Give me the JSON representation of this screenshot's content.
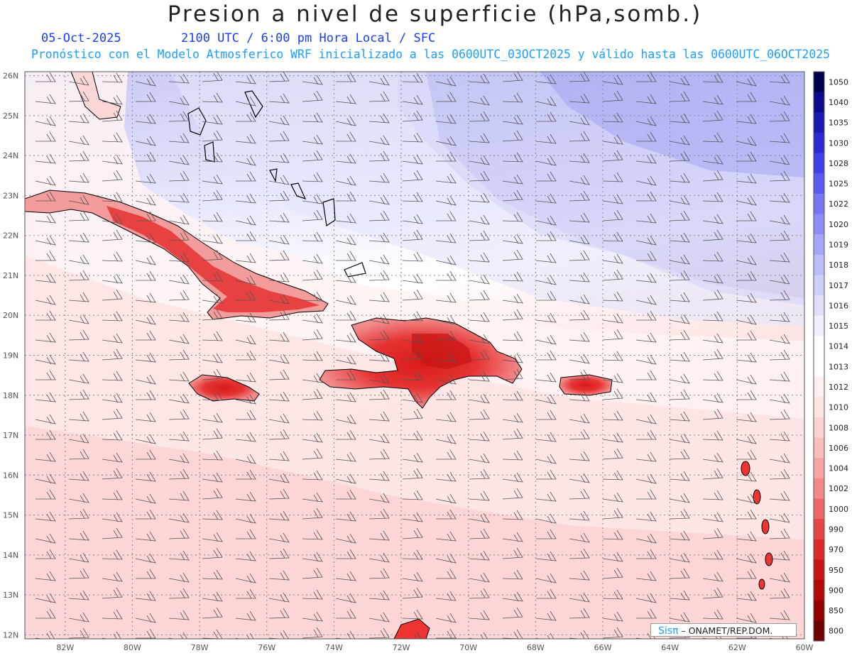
{
  "header": {
    "title": "Presion a nivel de superficie (hPa,somb.)",
    "date": "05-Oct-2025",
    "valid_time": "2100 UTC / 6:00 pm Hora Local / SFC",
    "subtitle": "Pronóstico con el Modelo Atmosferico WRF inicializado a las 0600UTC_03OCT2025 y válido hasta las  0600UTC_06OCT2025"
  },
  "map": {
    "lat_labels": [
      "26N",
      "25N",
      "24N",
      "23N",
      "22N",
      "21N",
      "20N",
      "19N",
      "18N",
      "17N",
      "16N",
      "15N",
      "14N",
      "13N",
      "12N"
    ],
    "lon_labels": [
      "82W",
      "80W",
      "78W",
      "76W",
      "74W",
      "72W",
      "70W",
      "68W",
      "66W",
      "64W",
      "62W",
      "60W"
    ],
    "lon_range": [
      -83.2,
      -60
    ],
    "lat_range": [
      11.9,
      26.1
    ],
    "colors": {
      "high_pressure": "#c9c9f6",
      "mid": "#ffffff",
      "low_pressure": "#fbd3d3",
      "land_low": "#e32020"
    }
  },
  "colorbar": {
    "levels": [
      "1050",
      "1040",
      "1035",
      "1030",
      "1028",
      "1025",
      "1022",
      "1020",
      "1019",
      "1018",
      "1017",
      "1016",
      "1015",
      "1014",
      "1013",
      "1012",
      "1010",
      "1008",
      "1006",
      "1004",
      "1002",
      "1000",
      "990",
      "970",
      "950",
      "900",
      "850",
      "800"
    ],
    "colors": [
      "#000052",
      "#0b0b8c",
      "#1a1ab0",
      "#2a2ad0",
      "#4040e6",
      "#5a5af0",
      "#7676f5",
      "#8d8df6",
      "#a6a6f8",
      "#bcbcfa",
      "#cfcffc",
      "#e0e0fd",
      "#efeffe",
      "#ffffff",
      "#ffffff",
      "#fff0f0",
      "#ffe2e2",
      "#fdd2d2",
      "#fbbcbc",
      "#f7a4a4",
      "#f28888",
      "#ec6868",
      "#e44646",
      "#da2a2a",
      "#c81414",
      "#b00a0a",
      "#930000",
      "#6e0000"
    ]
  },
  "credit": {
    "brand": "Sisπ",
    "text": " – ONAMET/REP.DOM."
  }
}
